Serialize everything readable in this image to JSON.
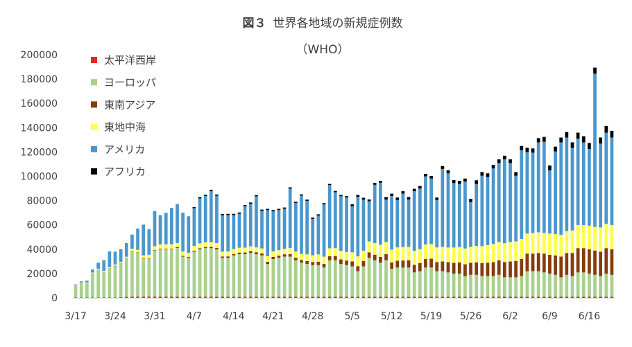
{
  "chart_data": {
    "type": "bar",
    "stacked": true,
    "title_prefix": "図３",
    "title": "世界各地域の新規症例数",
    "subtitle": "（WHO）",
    "xlabel": "",
    "ylabel": "",
    "ylim": [
      0,
      200000
    ],
    "yticks": [
      "0",
      "20000",
      "40000",
      "60000",
      "80000",
      "100000",
      "120000",
      "140000",
      "160000",
      "180000",
      "200000"
    ],
    "x_tick_labels": [
      "3/17",
      "3/24",
      "3/31",
      "4/7",
      "4/14",
      "4/21",
      "4/28",
      "5/5",
      "5/12",
      "5/19",
      "5/26",
      "6/2",
      "6/9",
      "6/16"
    ],
    "grid": false,
    "legend_position": "top-left",
    "categories": [
      "3/17",
      "3/18",
      "3/19",
      "3/20",
      "3/21",
      "3/22",
      "3/23",
      "3/24",
      "3/25",
      "3/26",
      "3/27",
      "3/28",
      "3/29",
      "3/30",
      "3/31",
      "4/1",
      "4/2",
      "4/3",
      "4/4",
      "4/5",
      "4/6",
      "4/7",
      "4/8",
      "4/9",
      "4/10",
      "4/11",
      "4/12",
      "4/13",
      "4/14",
      "4/15",
      "4/16",
      "4/17",
      "4/18",
      "4/19",
      "4/20",
      "4/21",
      "4/22",
      "4/23",
      "4/24",
      "4/25",
      "4/26",
      "4/27",
      "4/28",
      "4/29",
      "4/30",
      "5/1",
      "5/2",
      "5/3",
      "5/4",
      "5/5",
      "5/6",
      "5/7",
      "5/8",
      "5/9",
      "5/10",
      "5/11",
      "5/12",
      "5/13",
      "5/14",
      "5/15",
      "5/16",
      "5/17",
      "5/18",
      "5/19",
      "5/20",
      "5/21",
      "5/22",
      "5/23",
      "5/24",
      "5/25",
      "5/26",
      "5/27",
      "5/28",
      "5/29",
      "5/30",
      "5/31",
      "6/1",
      "6/2",
      "6/3",
      "6/4",
      "6/5",
      "6/6",
      "6/7",
      "6/8",
      "6/9",
      "6/10",
      "6/11",
      "6/12",
      "6/13",
      "6/14",
      "6/15",
      "6/16",
      "6/17",
      "6/18",
      "6/19",
      "6/20"
    ],
    "series": [
      {
        "name": "太平洋西岸",
        "color": "#e8251f",
        "values": [
          300,
          300,
          300,
          300,
          400,
          400,
          400,
          400,
          500,
          800,
          900,
          1000,
          1000,
          1000,
          1000,
          1000,
          1000,
          1000,
          1000,
          900,
          900,
          900,
          900,
          900,
          900,
          900,
          900,
          900,
          900,
          900,
          900,
          900,
          900,
          900,
          900,
          900,
          900,
          900,
          900,
          900,
          900,
          900,
          900,
          900,
          900,
          900,
          900,
          900,
          900,
          900,
          900,
          900,
          900,
          900,
          900,
          900,
          900,
          900,
          900,
          900,
          900,
          900,
          900,
          900,
          900,
          900,
          900,
          900,
          900,
          900,
          900,
          900,
          900,
          900,
          900,
          900,
          900,
          900,
          900,
          900,
          900,
          900,
          900,
          900,
          900,
          900,
          900,
          900,
          900,
          900,
          900,
          900,
          900,
          900,
          900,
          900
        ]
      },
      {
        "name": "ヨーロッパ",
        "color": "#a9d18e",
        "values": [
          9700,
          11700,
          11700,
          19700,
          22600,
          20600,
          23600,
          25600,
          27500,
          31200,
          37100,
          36000,
          31000,
          31000,
          38000,
          39000,
          39000,
          39000,
          40000,
          33000,
          32000,
          37000,
          39000,
          40000,
          40000,
          39000,
          32000,
          32000,
          34000,
          35000,
          35000,
          36000,
          35000,
          34000,
          27000,
          31000,
          32000,
          33000,
          33000,
          30000,
          28000,
          27000,
          26000,
          26000,
          24000,
          30000,
          30000,
          27000,
          26000,
          25000,
          21000,
          25000,
          32000,
          30000,
          28000,
          30000,
          23000,
          24000,
          24000,
          24000,
          20000,
          21000,
          24000,
          24000,
          21000,
          21000,
          20000,
          19000,
          19000,
          17000,
          18000,
          18000,
          17000,
          17000,
          17000,
          18000,
          16000,
          16000,
          16000,
          17000,
          21000,
          21000,
          21000,
          20000,
          19000,
          18000,
          16000,
          18000,
          17000,
          20000,
          20000,
          19000,
          18000,
          17000,
          19000,
          18000
        ]
      },
      {
        "name": "東南アジア",
        "color": "#843c0c",
        "values": [
          100,
          100,
          100,
          100,
          100,
          100,
          200,
          200,
          200,
          300,
          300,
          300,
          400,
          400,
          400,
          500,
          500,
          500,
          600,
          700,
          700,
          800,
          900,
          900,
          1000,
          1100,
          1100,
          1200,
          1200,
          1300,
          1400,
          1500,
          1600,
          1700,
          1800,
          1800,
          1800,
          1900,
          2000,
          2100,
          2200,
          2400,
          2600,
          2800,
          3000,
          3300,
          3500,
          3700,
          3800,
          4000,
          4200,
          4400,
          4500,
          4600,
          4800,
          5000,
          5300,
          5600,
          5800,
          6000,
          6300,
          6600,
          7000,
          7300,
          7600,
          8000,
          8500,
          9000,
          9300,
          9700,
          10000,
          10300,
          10600,
          11000,
          11500,
          12000,
          12500,
          13000,
          13500,
          14000,
          14500,
          14500,
          15000,
          15500,
          15500,
          16000,
          17000,
          18000,
          19000,
          20000,
          20000,
          20000,
          20000,
          20000,
          21000,
          21000
        ]
      },
      {
        "name": "東地中海",
        "color": "#ffff4d",
        "values": [
          300,
          400,
          500,
          700,
          800,
          900,
          1000,
          1200,
          1300,
          1500,
          2000,
          2200,
          2500,
          3000,
          3000,
          3500,
          3500,
          3500,
          3500,
          3500,
          3500,
          4000,
          4000,
          4000,
          4000,
          4000,
          4000,
          4000,
          4000,
          4000,
          4000,
          4000,
          4000,
          4000,
          4500,
          4500,
          4500,
          4500,
          5000,
          5000,
          5000,
          5500,
          5500,
          6000,
          6000,
          6500,
          6500,
          7000,
          7000,
          7500,
          8000,
          8500,
          9000,
          9500,
          10000,
          10000,
          10500,
          11000,
          11000,
          11000,
          11500,
          11500,
          12000,
          12000,
          12000,
          12000,
          12000,
          12500,
          12500,
          13000,
          13000,
          13500,
          14000,
          14500,
          15000,
          15000,
          15500,
          16000,
          16000,
          16500,
          16500,
          17000,
          17000,
          17000,
          17500,
          17500,
          18000,
          18000,
          18500,
          19000,
          19000,
          19500,
          19500,
          20000,
          20000,
          20000
        ]
      },
      {
        "name": "アメリカ",
        "color": "#4a97cd",
        "values": [
          600,
          1000,
          1500,
          2500,
          5000,
          9000,
          13000,
          10600,
          10500,
          11200,
          11700,
          17500,
          25300,
          21000,
          29000,
          24000,
          26000,
          30000,
          32000,
          32000,
          30000,
          31000,
          37000,
          38000,
          42000,
          39000,
          30000,
          30000,
          28000,
          28000,
          34000,
          35000,
          42000,
          31000,
          38000,
          33000,
          33000,
          33000,
          49000,
          40000,
          48000,
          44000,
          30000,
          32000,
          43000,
          52000,
          46000,
          45000,
          45000,
          38000,
          49000,
          42000,
          33000,
          48000,
          51000,
          35000,
          44000,
          39000,
          44000,
          39000,
          49000,
          50000,
          56000,
          54000,
          39000,
          64000,
          61000,
          53000,
          52000,
          55000,
          37000,
          51000,
          58000,
          56000,
          62000,
          65000,
          69000,
          65000,
          54000,
          73000,
          67000,
          66000,
          74000,
          75000,
          52000,
          68000,
          76000,
          77000,
          68000,
          71000,
          68000,
          63000,
          126000,
          69000,
          75000,
          72000
        ]
      },
      {
        "name": "アフリカ",
        "color": "#000000",
        "values": [
          0,
          0,
          0,
          0,
          0,
          0,
          0,
          0,
          0,
          0,
          0,
          0,
          0,
          0,
          0,
          0,
          0,
          0,
          0,
          0,
          0,
          1000,
          1000,
          1000,
          1000,
          1000,
          1000,
          1000,
          1000,
          1000,
          1000,
          1000,
          1000,
          1000,
          1000,
          1000,
          1000,
          1000,
          1000,
          1000,
          1000,
          1000,
          1000,
          1000,
          1000,
          1000,
          1000,
          1000,
          1000,
          1500,
          1500,
          1500,
          1500,
          1500,
          1500,
          2000,
          2000,
          2000,
          2000,
          2000,
          2000,
          2000,
          2000,
          2000,
          2000,
          2500,
          2500,
          2500,
          2500,
          2500,
          2500,
          3000,
          3000,
          3000,
          3000,
          3000,
          3000,
          3000,
          3000,
          3500,
          3500,
          3500,
          3500,
          4000,
          4000,
          4000,
          4000,
          4500,
          4500,
          5000,
          5000,
          5000,
          5000,
          5000,
          5500,
          5500
        ]
      }
    ]
  }
}
